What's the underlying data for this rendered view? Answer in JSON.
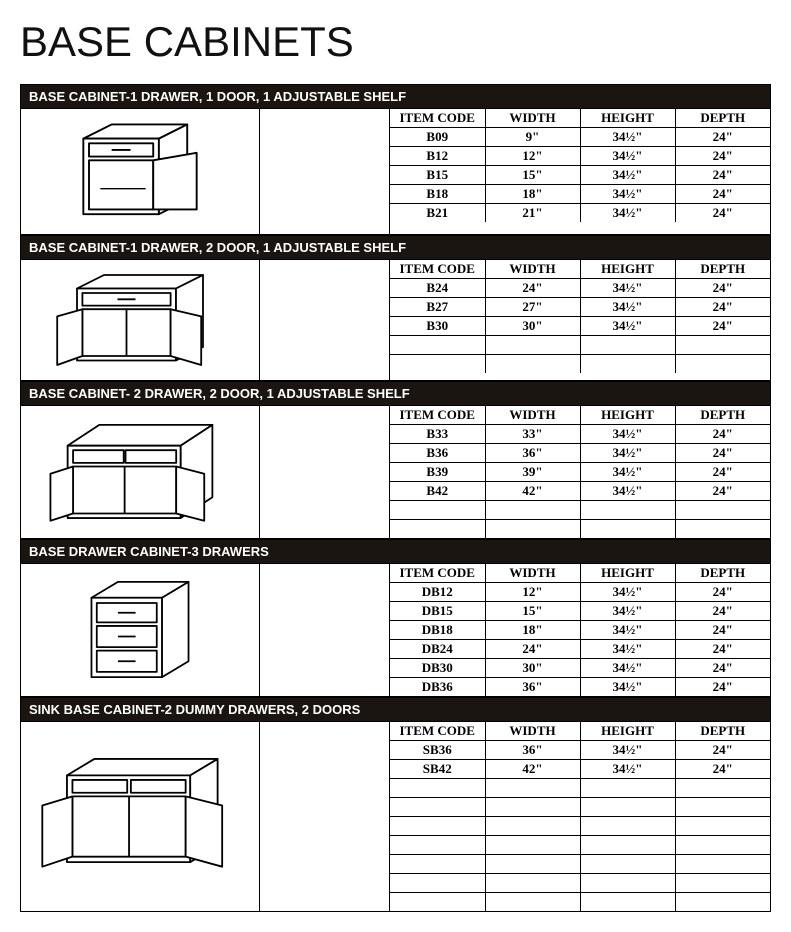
{
  "page_title": "BASE CABINETS",
  "columns": [
    "ITEM CODE",
    "WIDTH",
    "HEIGHT",
    "DEPTH"
  ],
  "colors": {
    "header_bg": "#1a1511",
    "header_fg": "#ffffff",
    "border": "#000000",
    "page_bg": "#ffffff"
  },
  "sections": [
    {
      "title": "BASE CABINET-1 DRAWER, 1 DOOR, 1 ADJUSTABLE SHELF",
      "diagram": "single-door-drawer",
      "min_rows": 5,
      "rows": [
        {
          "code": "B09",
          "width": "9\"",
          "height": "34½\"",
          "depth": "24\""
        },
        {
          "code": "B12",
          "width": "12\"",
          "height": "34½\"",
          "depth": "24\""
        },
        {
          "code": "B15",
          "width": "15\"",
          "height": "34½\"",
          "depth": "24\""
        },
        {
          "code": "B18",
          "width": "18\"",
          "height": "34½\"",
          "depth": "24\""
        },
        {
          "code": "B21",
          "width": "21\"",
          "height": "34½\"",
          "depth": "24\""
        }
      ]
    },
    {
      "title": "BASE CABINET-1 DRAWER, 2 DOOR, 1 ADJUSTABLE SHELF",
      "diagram": "double-door-drawer",
      "min_rows": 5,
      "rows": [
        {
          "code": "B24",
          "width": "24\"",
          "height": "34½\"",
          "depth": "24\""
        },
        {
          "code": "B27",
          "width": "27\"",
          "height": "34½\"",
          "depth": "24\""
        },
        {
          "code": "B30",
          "width": "30\"",
          "height": "34½\"",
          "depth": "24\""
        }
      ]
    },
    {
      "title": "BASE CABINET- 2 DRAWER, 2 DOOR, 1 ADJUSTABLE SHELF",
      "diagram": "double-drawer-double-door",
      "min_rows": 6,
      "rows": [
        {
          "code": "B33",
          "width": "33\"",
          "height": "34½\"",
          "depth": "24\""
        },
        {
          "code": "B36",
          "width": "36\"",
          "height": "34½\"",
          "depth": "24\""
        },
        {
          "code": "B39",
          "width": "39\"",
          "height": "34½\"",
          "depth": "24\""
        },
        {
          "code": "B42",
          "width": "42\"",
          "height": "34½\"",
          "depth": "24\""
        }
      ]
    },
    {
      "title": "BASE DRAWER CABINET-3 DRAWERS",
      "diagram": "three-drawers",
      "min_rows": 6,
      "rows": [
        {
          "code": "DB12",
          "width": "12\"",
          "height": "34½\"",
          "depth": "24\""
        },
        {
          "code": "DB15",
          "width": "15\"",
          "height": "34½\"",
          "depth": "24\""
        },
        {
          "code": "DB18",
          "width": "18\"",
          "height": "34½\"",
          "depth": "24\""
        },
        {
          "code": "DB24",
          "width": "24\"",
          "height": "34½\"",
          "depth": "24\""
        },
        {
          "code": "DB30",
          "width": "30\"",
          "height": "34½\"",
          "depth": "24\""
        },
        {
          "code": "DB36",
          "width": "36\"",
          "height": "34½\"",
          "depth": "24\""
        }
      ]
    },
    {
      "title": "SINK BASE CABINET-2 DUMMY DRAWERS, 2 DOORS",
      "diagram": "sink-base",
      "min_rows": 9,
      "rows": [
        {
          "code": "SB36",
          "width": "36\"",
          "height": "34½\"",
          "depth": "24\""
        },
        {
          "code": "SB42",
          "width": "42\"",
          "height": "34½\"",
          "depth": "24\""
        }
      ]
    }
  ]
}
